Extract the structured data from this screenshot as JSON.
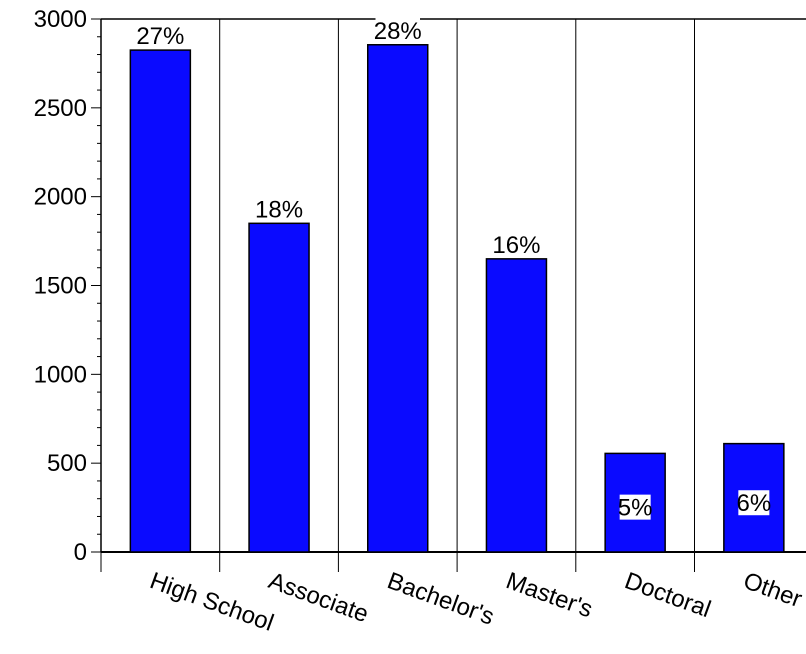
{
  "chart_data": {
    "type": "bar",
    "title": "",
    "xlabel": "",
    "ylabel": "",
    "categories": [
      "High School",
      "Associate",
      "Bachelor's",
      "Master's",
      "Doctoral",
      "Other"
    ],
    "values": [
      2825,
      1850,
      2855,
      1650,
      555,
      610
    ],
    "data_labels": [
      "27%",
      "18%",
      "28%",
      "16%",
      "5%",
      "6%"
    ],
    "ylim": [
      0,
      3000
    ],
    "yticks": [
      0,
      500,
      1000,
      1500,
      2000,
      2500,
      3000
    ],
    "yticks_labels": [
      "0",
      "500",
      "1000",
      "1500",
      "2000",
      "2500",
      "3000"
    ],
    "grid": "vertical",
    "legend": "none",
    "colors": {
      "bar": "#0a0aff",
      "bar_edge": "#000000",
      "grid": "#000000",
      "label_bg": "#ffffff"
    }
  }
}
